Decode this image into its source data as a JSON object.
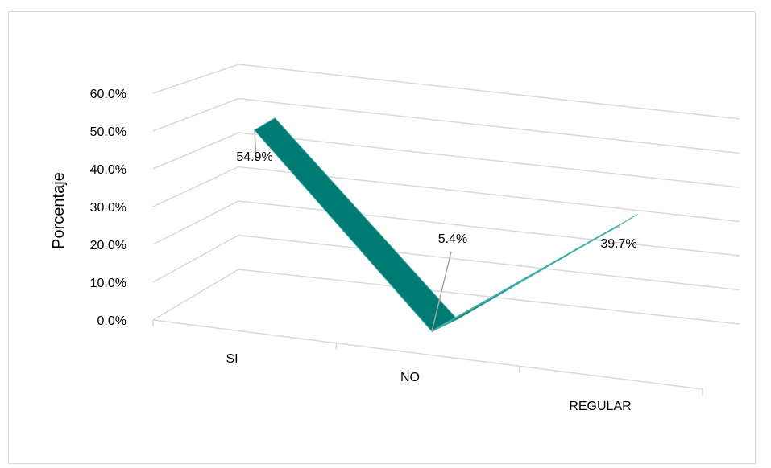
{
  "chart_data": {
    "type": "line",
    "style": "3d-ribbon",
    "categories": [
      "SI",
      "NO",
      "REGULAR"
    ],
    "values": [
      54.9,
      5.4,
      39.7
    ],
    "data_labels": [
      "54.9%",
      "5.4%",
      "39.7%"
    ],
    "ylabel": "Porcentaje",
    "ylim": [
      0,
      60
    ],
    "yticks": [
      "0.0%",
      "10.0%",
      "20.0%",
      "30.0%",
      "40.0%",
      "50.0%",
      "60.0%"
    ],
    "grid": true,
    "legend": "none",
    "colors": {
      "ribbon": "#007B73",
      "ribbon_edge": "#00655E",
      "ribbon_highlight": "#3FAFA8",
      "grid": "#D9D9D9"
    }
  }
}
